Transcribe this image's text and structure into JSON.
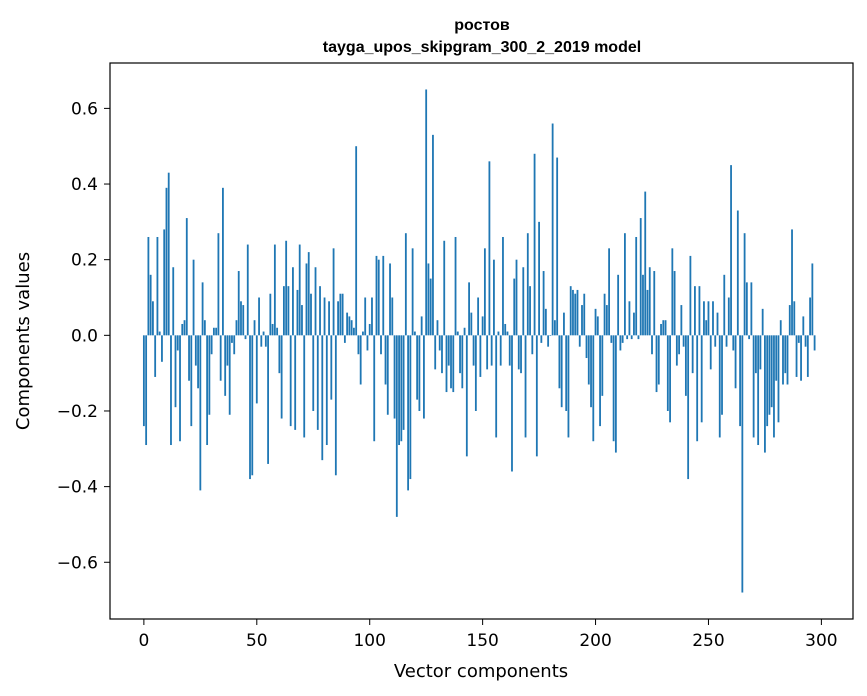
{
  "chart_data": {
    "type": "bar",
    "title": "ростов",
    "subtitle": "tayga_upos_skipgram_300_2_2019 model",
    "xlabel": "Vector components",
    "ylabel": "Components values",
    "xlim": [
      -15,
      314
    ],
    "ylim": [
      -0.75,
      0.72
    ],
    "xticks": [
      0,
      50,
      100,
      150,
      200,
      250,
      300
    ],
    "xtick_labels": [
      "0",
      "50",
      "100",
      "150",
      "200",
      "250",
      "300"
    ],
    "yticks": [
      -0.6,
      -0.4,
      -0.2,
      0.0,
      0.2,
      0.4,
      0.6
    ],
    "ytick_labels": [
      "−0.6",
      "−0.4",
      "−0.2",
      "0.0",
      "0.2",
      "0.4",
      "0.6"
    ],
    "grid": false,
    "bar_color": "#1f77b4",
    "values": [
      -0.24,
      -0.29,
      0.26,
      0.16,
      0.09,
      -0.11,
      0.26,
      0.01,
      -0.07,
      0.28,
      0.39,
      0.43,
      -0.29,
      0.18,
      -0.19,
      -0.04,
      -0.28,
      0.03,
      0.04,
      0.31,
      -0.12,
      -0.24,
      0.2,
      -0.08,
      -0.14,
      -0.41,
      0.14,
      0.04,
      -0.29,
      -0.21,
      -0.05,
      0.02,
      0.02,
      0.27,
      -0.12,
      0.39,
      -0.16,
      -0.08,
      -0.21,
      -0.02,
      -0.05,
      0.04,
      0.17,
      0.09,
      0.08,
      -0.01,
      0.24,
      -0.38,
      -0.37,
      0.04,
      -0.18,
      0.1,
      -0.03,
      0.01,
      -0.03,
      -0.34,
      0.11,
      0.03,
      0.24,
      0.02,
      -0.1,
      -0.22,
      0.13,
      0.25,
      0.13,
      -0.24,
      0.18,
      -0.25,
      0.12,
      0.24,
      0.08,
      -0.27,
      0.19,
      0.22,
      0.11,
      -0.2,
      0.18,
      -0.25,
      0.13,
      -0.33,
      0.1,
      -0.29,
      0.09,
      -0.17,
      0.23,
      -0.37,
      0.09,
      0.11,
      0.11,
      -0.02,
      0.06,
      0.05,
      0.04,
      0.02,
      0.5,
      -0.05,
      -0.13,
      0.01,
      0.1,
      -0.04,
      0.03,
      0.1,
      -0.28,
      0.21,
      0.2,
      -0.05,
      0.21,
      -0.13,
      -0.21,
      0.19,
      0.1,
      -0.22,
      -0.48,
      -0.29,
      -0.28,
      -0.25,
      0.27,
      -0.41,
      -0.38,
      0.23,
      0.01,
      -0.17,
      -0.2,
      0.05,
      -0.22,
      0.65,
      0.19,
      0.15,
      0.53,
      -0.09,
      0.04,
      -0.04,
      -0.1,
      0.25,
      -0.15,
      -0.08,
      -0.14,
      -0.15,
      0.26,
      0.01,
      -0.1,
      -0.14,
      0.02,
      -0.32,
      0.14,
      0.06,
      -0.08,
      -0.2,
      0.1,
      -0.11,
      0.05,
      0.23,
      -0.09,
      0.46,
      -0.08,
      0.2,
      -0.27,
      0.01,
      -0.08,
      0.26,
      0.03,
      0.01,
      -0.08,
      -0.36,
      0.15,
      0.2,
      -0.09,
      -0.1,
      0.18,
      -0.27,
      0.27,
      0.13,
      -0.05,
      0.48,
      -0.32,
      0.3,
      -0.02,
      0.17,
      0.07,
      -0.03,
      0.0,
      0.56,
      0.04,
      0.47,
      -0.14,
      -0.19,
      0.06,
      -0.2,
      -0.27,
      0.13,
      0.12,
      0.11,
      0.12,
      -0.03,
      0.08,
      0.11,
      -0.06,
      -0.13,
      -0.19,
      -0.28,
      0.07,
      0.05,
      -0.24,
      -0.16,
      0.11,
      0.08,
      0.23,
      -0.02,
      -0.28,
      -0.31,
      0.16,
      -0.04,
      -0.02,
      0.27,
      -0.01,
      0.09,
      -0.01,
      0.06,
      0.26,
      -0.01,
      0.31,
      0.16,
      0.38,
      0.12,
      0.18,
      -0.05,
      0.17,
      -0.15,
      -0.13,
      0.03,
      0.04,
      0.04,
      -0.2,
      -0.23,
      0.23,
      0.17,
      -0.08,
      -0.05,
      0.08,
      -0.03,
      -0.16,
      -0.38,
      0.21,
      -0.1,
      0.13,
      -0.28,
      0.13,
      -0.23,
      0.09,
      0.04,
      0.09,
      -0.09,
      0.09,
      -0.03,
      0.06,
      -0.27,
      -0.21,
      0.16,
      -0.03,
      0.1,
      0.45,
      -0.04,
      -0.14,
      0.33,
      -0.24,
      -0.68,
      0.27,
      0.14,
      -0.01,
      0.14,
      -0.27,
      -0.1,
      -0.29,
      -0.09,
      0.07,
      -0.31,
      -0.24,
      -0.21,
      -0.19,
      -0.27,
      -0.12,
      -0.23,
      0.04,
      -0.13,
      -0.1,
      -0.13,
      0.08,
      0.28,
      0.09,
      -0.11,
      -0.02,
      -0.12,
      0.05,
      -0.03,
      -0.11,
      0.1,
      0.19,
      -0.04
    ]
  }
}
